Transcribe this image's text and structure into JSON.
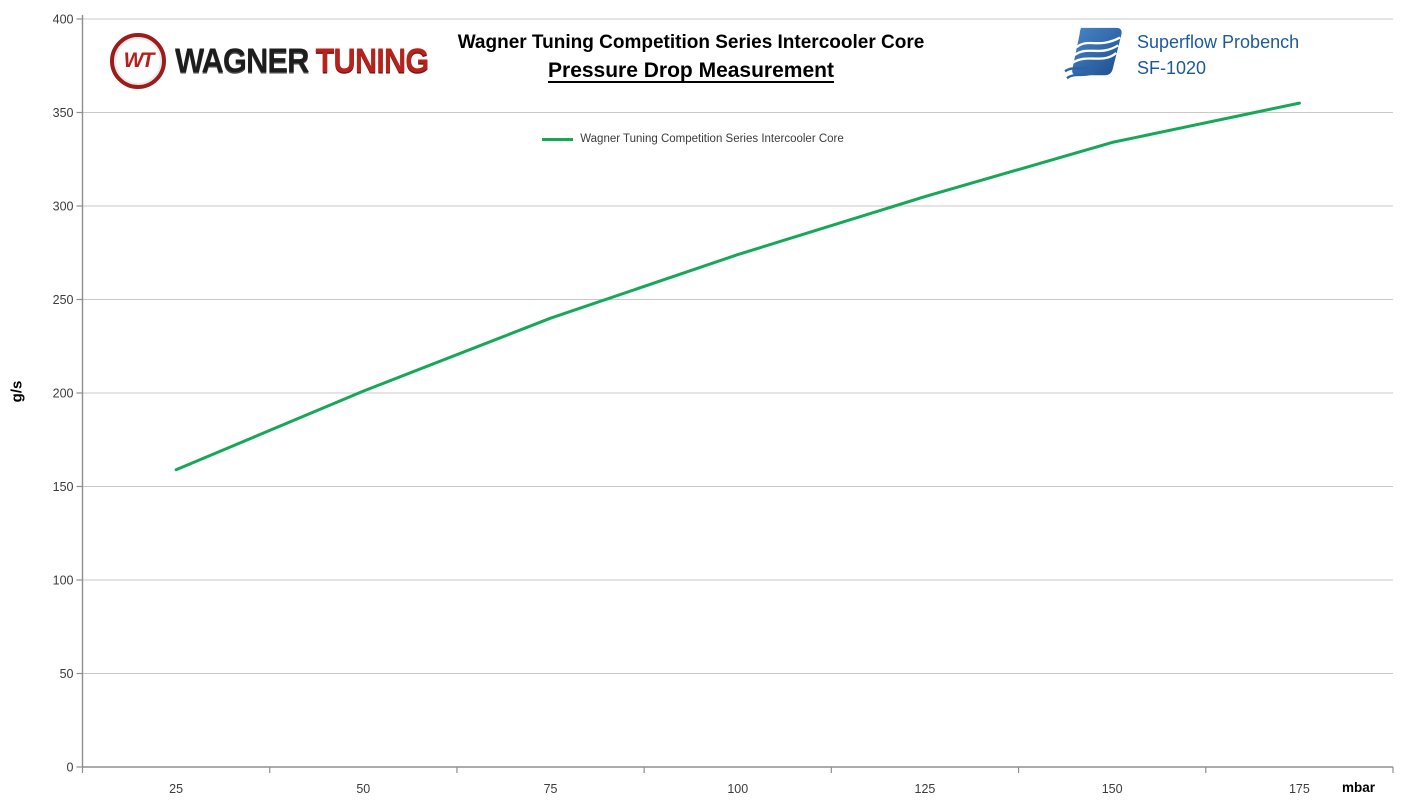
{
  "header": {
    "brand": {
      "emblem_text": "WT",
      "name_primary": "WAGNER",
      "name_secondary": "TUNING",
      "primary_color": "#1d1d1d",
      "secondary_color": "#b6221c",
      "emblem_ring_color": "#9c1b1b"
    },
    "title_line1": "Wagner Tuning Competition Series Intercooler Core",
    "title_line2": "Pressure Drop Measurement",
    "bench": {
      "line1": "Superflow Probench",
      "line2": "SF-1020",
      "color": "#1d5a9b",
      "logo_color": "#2a63a8"
    }
  },
  "chart_data": {
    "type": "line",
    "title": "Wagner Tuning Competition Series Intercooler Core — Pressure Drop Measurement",
    "categories": [
      25,
      50,
      75,
      100,
      125,
      150,
      175
    ],
    "series": [
      {
        "name": "Wagner Tuning Competition Series Intercooler Core",
        "color": "#17a857",
        "values": [
          159,
          201,
          240,
          274,
          305,
          334,
          355
        ]
      }
    ],
    "xlabel": "mbar",
    "ylabel": "g/s",
    "ylim": [
      0,
      400
    ],
    "ytick_step": 50,
    "yticks": [
      0,
      50,
      100,
      150,
      200,
      250,
      300,
      350,
      400
    ],
    "grid": true,
    "legend_position": "top-center",
    "gridline_color": "#c9c9c9",
    "axis_color": "#8f8f8f",
    "tick_label_color": "#3c3c3c"
  }
}
